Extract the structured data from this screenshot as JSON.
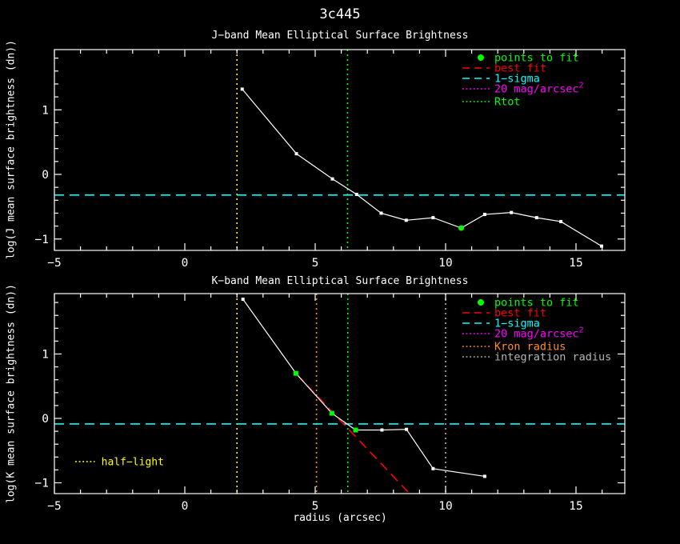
{
  "title": "3c445",
  "colors": {
    "background": "#000000",
    "axis": "#ffffff",
    "points_to_fit": "#00ff00",
    "best_fit": "#ff0000",
    "one_sigma": "#00ffff",
    "mag_limit": "#ff00ff",
    "kron_radius": "#ff8c28",
    "integration_radius": "#b4b4b4",
    "half_light": "#ffff00",
    "rtot": "#00ff00"
  },
  "chart_data": [
    {
      "type": "line",
      "band": "J",
      "title": "J−band Mean Elliptical Surface Brightness",
      "ylabel": "log(J mean surface brightness (dn))",
      "xlabel": "",
      "xlim": [
        -5,
        16.9
      ],
      "ylim": [
        -1.18,
        1.93
      ],
      "xticks": [
        -5,
        0,
        5,
        10,
        15
      ],
      "yticks": [
        -1,
        0,
        1
      ],
      "grid": false,
      "legend_position": "top-right",
      "series": [
        {
          "name": "surface-brightness-profile",
          "color": "#ffffff",
          "marker": "square",
          "marker_size": 4,
          "line": true,
          "style": "solid",
          "points": [
            [
              2.2,
              1.32
            ],
            [
              4.28,
              0.32
            ],
            [
              5.66,
              -0.07
            ],
            [
              6.59,
              -0.31
            ],
            [
              7.53,
              -0.6
            ],
            [
              8.49,
              -0.71
            ],
            [
              9.52,
              -0.67
            ],
            [
              10.6,
              -0.83
            ],
            [
              11.5,
              -0.62
            ],
            [
              12.52,
              -0.59
            ],
            [
              13.49,
              -0.67
            ],
            [
              14.42,
              -0.73
            ],
            [
              15.98,
              -1.11
            ]
          ]
        },
        {
          "name": "points-to-fit",
          "color": "#00ff00",
          "marker": "circle",
          "marker_size": 7,
          "line": false,
          "points": [
            [
              10.6,
              -0.83
            ]
          ]
        }
      ],
      "hlines": [
        {
          "name": "1-sigma",
          "y": -0.32,
          "color": "#00ffff",
          "style": "dashed"
        }
      ],
      "vlines": [
        {
          "name": "half-light",
          "x": 2.0,
          "color": "#ffff00",
          "style": "dotted"
        },
        {
          "name": "Rtot",
          "x": 6.24,
          "color": "#00ff00",
          "style": "dotted"
        }
      ],
      "legend": [
        {
          "label": "points to fit",
          "color": "#00ff00",
          "style": "dot"
        },
        {
          "label": "best fit",
          "color": "#ff0000",
          "style": "dashed"
        },
        {
          "label": "1−sigma",
          "color": "#00ffff",
          "style": "dashed"
        },
        {
          "label": "20 mag/arcsec",
          "sup": "2",
          "color": "#ff00ff",
          "style": "dotted"
        },
        {
          "label": "Rtot",
          "color": "#00ff00",
          "style": "dotted"
        }
      ],
      "annotations": []
    },
    {
      "type": "line",
      "band": "K",
      "title": "K−band Mean Elliptical Surface Brightness",
      "ylabel": "log(K mean surface brightness (dn))",
      "xlabel": "radius (arcsec)",
      "xlim": [
        -5,
        16.9
      ],
      "ylim": [
        -1.17,
        1.94
      ],
      "xticks": [
        -5,
        0,
        5,
        10,
        15
      ],
      "yticks": [
        -1,
        0,
        1
      ],
      "grid": false,
      "legend_position": "top-right",
      "series": [
        {
          "name": "best-fit",
          "color": "#ff0000",
          "marker": "none",
          "marker_size": 0,
          "line": true,
          "style": "dashed",
          "points": [
            [
              4.3,
              0.68
            ],
            [
              8.6,
              -1.16
            ]
          ]
        },
        {
          "name": "surface-brightness-profile",
          "color": "#ffffff",
          "marker": "square",
          "marker_size": 4,
          "line": true,
          "style": "solid",
          "points": [
            [
              2.23,
              1.85
            ],
            [
              4.26,
              0.7
            ],
            [
              5.64,
              0.08
            ],
            [
              6.55,
              -0.18
            ],
            [
              7.56,
              -0.18
            ],
            [
              8.5,
              -0.17
            ],
            [
              9.52,
              -0.78
            ],
            [
              11.5,
              -0.9
            ]
          ]
        },
        {
          "name": "points-to-fit",
          "color": "#00ff00",
          "marker": "square",
          "marker_size": 6,
          "line": false,
          "points": [
            [
              4.26,
              0.7
            ],
            [
              5.64,
              0.08
            ],
            [
              6.55,
              -0.18
            ]
          ]
        }
      ],
      "hlines": [
        {
          "name": "1-sigma",
          "y": -0.086,
          "color": "#00ffff",
          "style": "dashed"
        }
      ],
      "vlines": [
        {
          "name": "half-light",
          "x": 2.0,
          "color": "#ffff00",
          "style": "dotted"
        },
        {
          "name": "Kron-radius",
          "x": 5.05,
          "color": "#ff8c28",
          "style": "dotted"
        },
        {
          "name": "Rtot",
          "x": 6.25,
          "color": "#00ff00",
          "style": "dotted"
        },
        {
          "name": "integration-radius",
          "x": 10.0,
          "color": "#b4b4b4",
          "style": "dotted"
        }
      ],
      "legend": [
        {
          "label": "points to fit",
          "color": "#00ff00",
          "style": "dot"
        },
        {
          "label": "best fit",
          "color": "#ff0000",
          "style": "dashed"
        },
        {
          "label": "1−sigma",
          "color": "#00ffff",
          "style": "dashed"
        },
        {
          "label": "20 mag/arcsec",
          "sup": "2",
          "color": "#ff00ff",
          "style": "dotted"
        },
        {
          "label": "Kron radius",
          "color": "#ff8c28",
          "style": "dotted"
        },
        {
          "label": "integration radius",
          "color": "#b4b4b4",
          "style": "dotted"
        }
      ],
      "annotations": [
        {
          "label": "half−light",
          "color": "#ffff00",
          "text_x": -3.2,
          "y": -0.67,
          "line_from": -4.2,
          "line_to": -3.45,
          "style": "dotted"
        }
      ]
    }
  ]
}
